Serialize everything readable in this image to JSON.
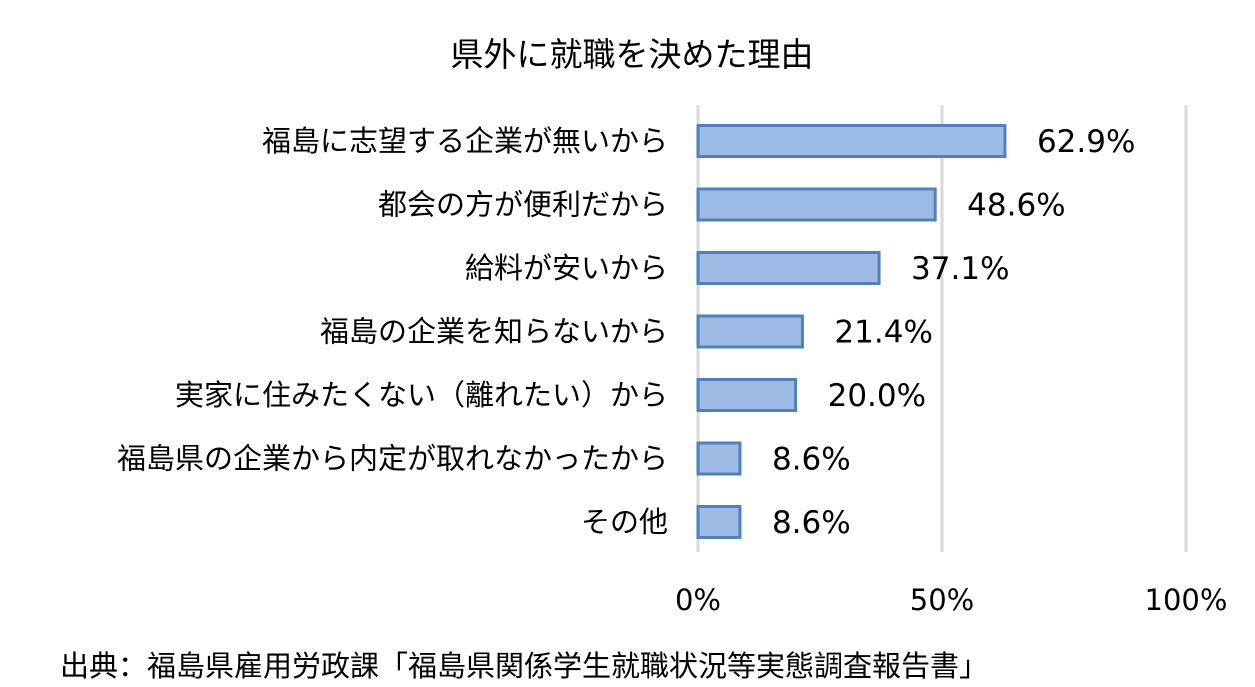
{
  "chart_data": {
    "type": "bar",
    "orientation": "horizontal",
    "title": "県外に就職を決めた理由",
    "categories": [
      "福島に志望する企業が無いから",
      "都会の方が便利だから",
      "給料が安いから",
      "福島の企業を知らないから",
      "実家に住みたくない（離れたい）から",
      "福島県の企業から内定が取れなかったから",
      "その他"
    ],
    "values": [
      62.9,
      48.6,
      37.1,
      21.4,
      20.0,
      8.6,
      8.6
    ],
    "value_labels": [
      "62.9%",
      "48.6%",
      "37.1%",
      "21.4%",
      "20.0%",
      "8.6%",
      "8.6%"
    ],
    "x_ticks": [
      "0%",
      "50%",
      "100%"
    ],
    "xlim": [
      0,
      100
    ],
    "grid": true,
    "bar_color": "#9dbbe4",
    "bar_edge_color": "#4f81bd",
    "grid_color": "#d9d9d9"
  },
  "source": "出典：福島県雇用労政課「福島県関係学生就職状況等実態調査報告書」"
}
